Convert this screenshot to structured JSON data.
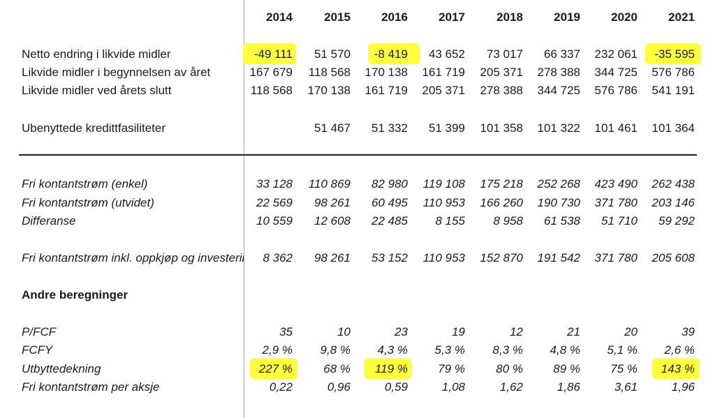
{
  "years": [
    "2014",
    "2015",
    "2016",
    "2017",
    "2018",
    "2019",
    "2020",
    "2021"
  ],
  "rows": [
    {
      "label": "Netto endring i likvide midler",
      "values": [
        "-49 111",
        "51 570",
        "-8 419",
        "43 652",
        "73 017",
        "66 337",
        "232 061",
        "-35 595"
      ]
    },
    {
      "label": "Likvide midler i begynnelsen av året",
      "values": [
        "167 679",
        "118 568",
        "170 138",
        "161 719",
        "205 371",
        "278 388",
        "344 725",
        "576 786"
      ]
    },
    {
      "label": "Likvide midler ved årets slutt",
      "values": [
        "118 568",
        "170 138",
        "161 719",
        "205 371",
        "278 388",
        "344 725",
        "576 786",
        "541 191"
      ]
    },
    {
      "label": "Ubenyttede kredittfasiliteter",
      "values": [
        "",
        "51 467",
        "51 332",
        "51 399",
        "101 358",
        "101 322",
        "101 461",
        "101 364"
      ]
    },
    {
      "label": "Fri kontantstrøm (enkel)",
      "values": [
        "33 128",
        "110 869",
        "82 980",
        "119 108",
        "175 218",
        "252 268",
        "423 490",
        "262 438"
      ]
    },
    {
      "label": "Fri kontantstrøm (utvidet)",
      "values": [
        "22 569",
        "98 261",
        "60 495",
        "110 953",
        "166 260",
        "190 730",
        "371 780",
        "203 146"
      ]
    },
    {
      "label": "Differanse",
      "values": [
        "10 559",
        "12 608",
        "22 485",
        "8 155",
        "8 958",
        "61 538",
        "51 710",
        "59 292"
      ]
    },
    {
      "label": "Fri kontantstrøm inkl. oppkjøp og investeringer",
      "values": [
        "8 362",
        "98 261",
        "53 152",
        "110 953",
        "152 870",
        "191 542",
        "371 780",
        "205 608"
      ]
    },
    {
      "label": "Andre beregninger",
      "values": [
        "",
        "",
        "",
        "",
        "",
        "",
        "",
        ""
      ]
    },
    {
      "label": "P/FCF",
      "values": [
        "35",
        "10",
        "23",
        "19",
        "12",
        "21",
        "20",
        "39"
      ]
    },
    {
      "label": "FCFY",
      "values": [
        "2,9 %",
        "9,8 %",
        "4,3 %",
        "5,3 %",
        "8,3 %",
        "4,8 %",
        "5,1 %",
        "2,6 %"
      ]
    },
    {
      "label": "Utbyttedekning",
      "values": [
        "227 %",
        "68 %",
        "119 %",
        "79 %",
        "80 %",
        "89 %",
        "75 %",
        "143 %"
      ]
    },
    {
      "label": "Fri kontantstrøm per aksje",
      "values": [
        "0,22",
        "0,96",
        "0,59",
        "1,08",
        "1,62",
        "1,86",
        "3,61",
        "1,96"
      ]
    }
  ],
  "highlight_color": "#ffff3b",
  "highlighted_cells": [
    {
      "row": 0,
      "col": 0
    },
    {
      "row": 0,
      "col": 2
    },
    {
      "row": 0,
      "col": 7
    },
    {
      "row": 11,
      "col": 0
    },
    {
      "row": 11,
      "col": 2
    },
    {
      "row": 11,
      "col": 7
    }
  ]
}
